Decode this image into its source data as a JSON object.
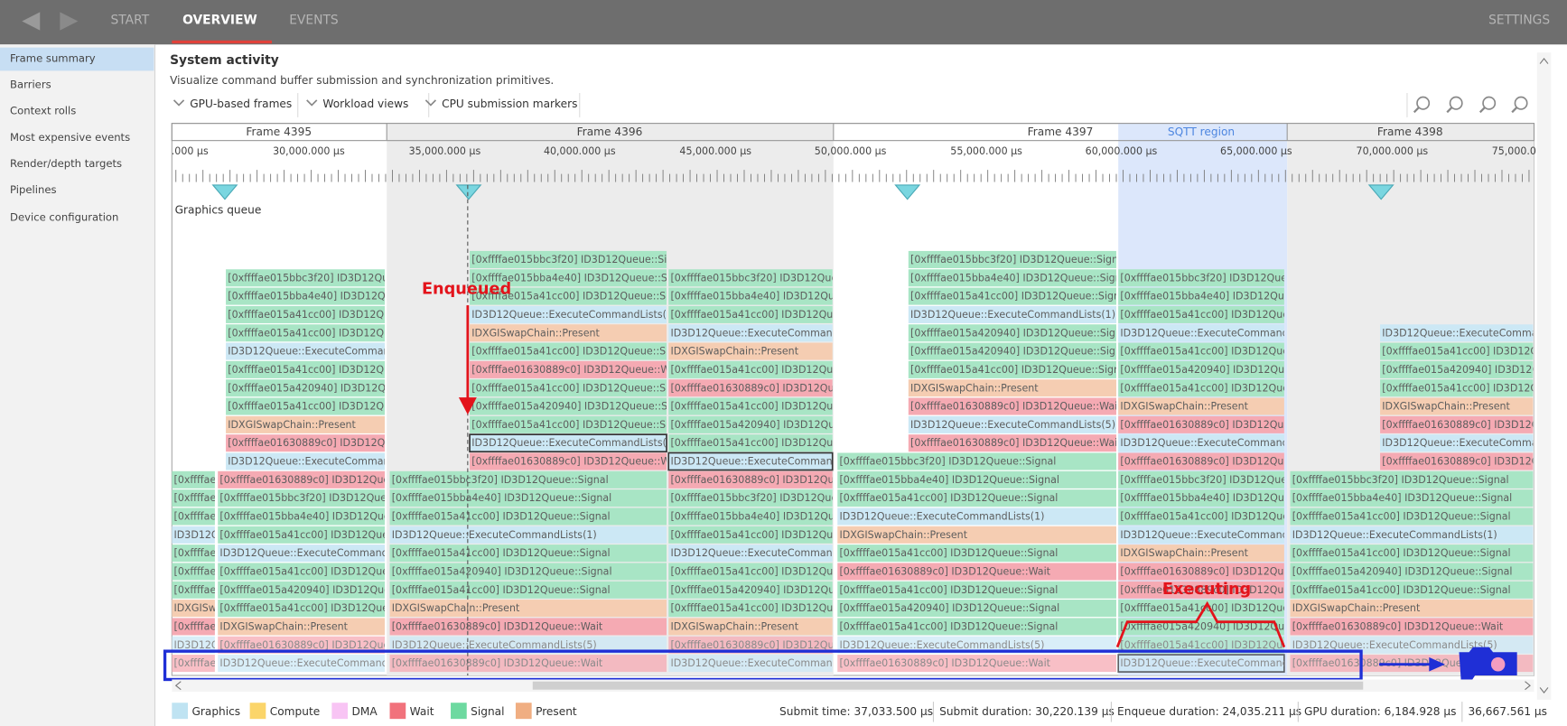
{
  "nav": {
    "tabs": [
      "START",
      "OVERVIEW",
      "EVENTS"
    ],
    "settings": "SETTINGS"
  },
  "sidebar": [
    "Frame summary",
    "Barriers",
    "Context rolls",
    "Most expensive events",
    "Render/depth targets",
    "Pipelines",
    "Device configuration"
  ],
  "header": {
    "title": "System activity",
    "subtitle": "Visualize command buffer submission and synchronization primitives."
  },
  "toolbar": [
    "GPU-based frames",
    "Workload views",
    "CPU submission markers"
  ],
  "timeline": {
    "frames": [
      "Frame 4395",
      "Frame 4396",
      "Frame 4397",
      "SQTT region",
      "Frame 4398"
    ],
    "ruler": [
      ".000 μs",
      "30,000.000 μs",
      "35,000.000 μs",
      "40,000.000 μs",
      "45,000.000 μs",
      "50,000.000 μs",
      "55,000.000 μs",
      "60,000.000 μs",
      "65,000.000 μs",
      "70,000.000 μs",
      "75,000.0"
    ],
    "queue": "Graphics queue",
    "annotations": {
      "enqueued": "Enqueued",
      "executing": "Executing"
    },
    "columns": [
      [
        "[0xffffae01630889c0] ID3D12Queue::Wait",
        "ID3D12Queue::ExecuteCommandLists(5)",
        "[0xffffae01630889c0] ID3D12Queue::Wait",
        "IDXGISwapChain::Present",
        "[0xffffae015a41cc00] ID3D12Queue::Signal",
        "[0xffffae015a420940] ID3D12Queue::Signal",
        "[0xffffae015a41cc00] ID3D12Queue::Signal",
        "ID3D12Queue::ExecuteCommandLists(1)",
        "[0xffffae015a41cc00] ID3D12Queue::Signal",
        "[0xffffae015bba4e40] ID3D12Queue::Signal",
        "[0xffffae015bbc3f20] ID3D12Queue::Signal"
      ],
      [
        "ID3D12Queue::ExecuteCommandLists",
        "[0xffffae01630889c0] ID3D12Queue",
        "IDXGISwapChain::Present",
        "[0xffffae015a41cc00] ID3D12Queue",
        "[0xffffae015a420940] ID3D12Queue",
        "[0xffffae015a41cc00] ID3D12Queue",
        "ID3D12Queue::ExecuteCommandLists",
        "[0xffffae015a41cc00] ID3D12Queue",
        "[0xffffae015bba4e40] ID3D12Queue",
        "[0xffffae015bbc3f20] ID3D12Queue",
        "[0xffffae01630889c0] ID3D12Queue"
      ],
      [
        "ID3D12Queue::ExecuteCommandLists",
        "[0xffffae01630889c0] ID3D12Queue",
        "IDXGISwapChain::Present",
        "[0xffffae015a41cc00] ID3D12Queue",
        "[0xffffae015a420940] ID3D12Queue",
        "[0xffffae015a41cc00] ID3D12Queue",
        "ID3D12Queue::ExecuteCommandLists",
        "[0xffffae015a41cc00] ID3D12Queue",
        "[0xffffae015a41cc00] ID3D12Queue",
        "[0xffffae015bba4e40] ID3D12Queue",
        "[0xffffae015bbc3f20] ID3D12Queue"
      ],
      [
        "[0xffffae01630889c0] ID3D12Queue::Wait",
        "ID3D12Queue::ExecuteCommandLists(5)",
        "[0xffffae01630889c0] ID3D12Queue::Wait",
        "IDXGISwapChain::Present",
        "[0xffffae015a41cc00] ID3D12Queue::Signal",
        "[0xffffae015a420940] ID3D12Queue::Signal",
        "[0xffffae015a41cc00] ID3D12Queue::Signal",
        "ID3D12Queue::ExecuteCommandLists(1)",
        "[0xffffae015a41cc00] ID3D12Queue::Signal",
        "[0xffffae015bba4e40] ID3D12Queue::Signal",
        "[0xffffae015bbc3f20] ID3D12Queue::Signal"
      ],
      [
        "[0xffffae01630889c0] ID3D12Queue::Wait",
        "ID3D12Queue::ExecuteCommandLists(5)",
        "[0xffffae015a41cc00] ID3D12Queue::Signal",
        "[0xffffae015a420940] ID3D12Queue::Signal",
        "[0xffffae015a41cc00] ID3D12Queue::Signal",
        "[0xffffae01630889c0] ID3D12Queue::Wait",
        "[0xffffae015a41cc00] ID3D12Queue::Signal",
        "IDXGISwapChain::Present",
        "ID3D12Queue::ExecuteCommandLists(1)",
        "[0xffffae015a41cc00] ID3D12Queue::Signal",
        "[0xffffae015bba4e40] ID3D12Queue::Signal",
        "[0xffffae015bbc3f20] ID3D12Queue::Signal"
      ],
      [
        "ID3D12Queue::ExecuteCommandLists",
        "[0xffffae01630889c0] ID3D12Queue",
        "IDXGISwapChain::Present",
        "[0xffffae015a41cc00] ID3D12Queue",
        "[0xffffae015a420940] ID3D12Queue",
        "[0xffffae015a41cc00] ID3D12Queue",
        "ID3D12Queue::ExecuteCommandLists",
        "[0xffffae015a41cc00] ID3D12Queue",
        "[0xffffae015bba4e40] ID3D12Queue",
        "[0xffffae015bbc3f20] ID3D12Queue",
        "[0xffffae01630889c0] ID3D12Queue",
        "ID3D12Queue::ExecuteCommandList",
        "[0xffffae015a41cc00] ID3D12Queue",
        "[0xffffae015a420940] ID3D12Queue",
        "[0xffffae015a41cc00] ID3D12Queue",
        "[0xffffae01630889c0] ID3D12Queue",
        "[0xffffae015a41cc00] ID3D12Queue",
        "IDXGISwapChain::Present",
        "ID3D12Queue::ExecuteCommandLists",
        "[0xffffae015a41cc00] ID3D12Queue",
        "[0xffffae015bba4e40] ID3D12Queue",
        "[0xffffae015bbc3f20] ID3D12Queue"
      ],
      [
        "[0xffffae01630889c0] ID3D12Queue::Wait",
        "ID3D12Queue::ExecuteCommandLists(5)",
        "[0xffffae015a41cc00] ID3D12Queue::Signal",
        "[0xffffae015a420940] ID3D12Queue::Signal",
        "[0xffffae015a41cc00] ID3D12Queue::Signal",
        "[0xffffae01630889c0] ID3D12Queue::Wait",
        "[0xffffae015a41cc00] ID3D12Queue::Signal",
        "IDXGISwapChain::Present",
        "ID3D12Queue::ExecuteCommandLists(1)",
        "[0xffffae015a41cc00] ID3D12Queue::Signal",
        "[0xffffae015bba4e40] ID3D12Queue::Signal",
        "[0xffffae015bbc3f20] ID3D12Queue::Signal"
      ],
      [
        "[0xffffae01630889c0] ID3D12Queue::Wait",
        "ID3D12Queue::ExecuteCommandLists(5)",
        "[0xffffae01630889c0] ID3D12Queue::Wait",
        "IDXGISwapChain::Present",
        "[0xffffae015a41cc00] ID3D12Queue::Signal",
        "[0xffffae015a420940] ID3D12Queue::Signal",
        "[0xffffae015a420940] ID3D12Queue::Signal",
        "ID3D12Queue::ExecuteCommandLists(1)",
        "[0xffffae015a41cc00] ID3D12Queue::Signal",
        "[0xffffae015bba4e40] ID3D12Queue::Signal",
        "[0xffffae015bbc3f20] ID3D12Queue::Signal"
      ],
      [
        "ID3D12Queue::ExecuteCommandLists",
        "[0xffffae015a41cc00] ID3D12Queue",
        "[0xffffae015a420940] ID3D12Queue",
        "[0xffffae015a41cc00] ID3D12Queue",
        "[0xffffae01630889c0] ID3D12Queue",
        "[0xffffae01630889c0] ID3D12Queue",
        "IDXGISwapChain::Present",
        "ID3D12Queue::ExecuteCommandLists",
        "[0xffffae015a41cc00] ID3D12Queue",
        "[0xffffae015bba4e40] ID3D12Queue",
        "[0xffffae015bbc3f20] ID3D12Queue",
        "[0xffffae01630889c0] ID3D12Queue",
        "ID3D12Queue::ExecuteCommandLists",
        "[0xffffae01630889c0] ID3D12Queue",
        "IDXGISwapChain::Present",
        "[0xffffae015a41cc00] ID3D12Queue",
        "[0xffffae015a420940] ID3D12Queue",
        "[0xffffae015a41cc00] ID3D12Queue",
        "ID3D12Queue::ExecuteCommandLists",
        "[0xffffae015a41cc00] ID3D12Queue",
        "[0xffffae015bba4e40] ID3D12Queue",
        "[0xffffae015bbc3f20] ID3D12Queue"
      ],
      [
        "[0xffffae01630889c0] ID3D12Queue::Wait",
        "ID3D12Queue::ExecuteCommandLists(5)",
        "[0xffffae01630889c0] ID3D12Queue::Wait",
        "IDXGISwapChain::Present",
        "[0xffffae015a41cc00] ID3D12Queue::Signal",
        "[0xffffae015a420940] ID3D12Queue::Signal",
        "[0xffffae015a41cc00] ID3D12Queue::Signal",
        "ID3D12Queue::ExecuteCommandLists(1)",
        "[0xffffae015a41cc00] ID3D12Queue::Signal",
        "[0xffffae015bba4e40] ID3D12Queue::Signal",
        "[0xffffae015bbc3f20] ID3D12Queue::Signal"
      ],
      [
        "[0xffffae01630889c0] ID3D12Queue",
        "ID3D12Queue::ExecuteCommandLis",
        "[0xffffae01630889c0] ID3D12Queue",
        "IDXGISwapChain::Present",
        "[0xffffae015a41cc00] ID3D12Queue",
        "[0xffffae015a420940] ID3D12Queue",
        "[0xffffae015a41cc00] ID3D12Que",
        "ID3D12Queue::ExecuteCommand"
      ]
    ]
  },
  "legend": [
    "Graphics",
    "Compute",
    "DMA",
    "Wait",
    "Signal",
    "Present"
  ],
  "status": [
    "Submit time: 37,033.500 μs",
    "Submit duration: 30,220.139 μs",
    "Enqueue duration: 24,035.211 μs",
    "GPU duration: 6,184.928 μs",
    "36,667.561 μs"
  ]
}
